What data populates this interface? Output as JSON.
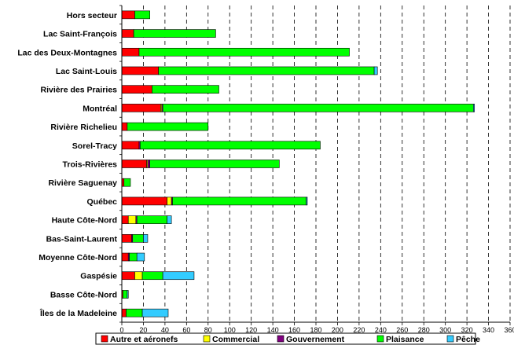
{
  "chart_data": {
    "type": "bar",
    "orientation": "horizontal",
    "stacked": true,
    "categories": [
      "Hors secteur",
      "Lac Saint-François",
      "Lac des Deux-Montagnes",
      "Lac Saint-Louis",
      "Rivière des Prairies",
      "Montréal",
      "Rivière Richelieu",
      "Sorel-Tracy",
      "Trois-Rivières",
      "Rivière Saguenay",
      "Québec",
      "Haute Côte-Nord",
      "Bas-Saint-Laurent",
      "Moyenne Côte-Nord",
      "Gaspésie",
      "Basse Côte-Nord",
      "Îles de la Madeleine"
    ],
    "series": [
      {
        "name": "Autre et aéronefs",
        "color": "#ff0000",
        "values": [
          12,
          11,
          16,
          34,
          28,
          36,
          5,
          16,
          23,
          2,
          42,
          6,
          9,
          6,
          12,
          1,
          4
        ]
      },
      {
        "name": "Commercial",
        "color": "#ffff00",
        "values": [
          0,
          0,
          0,
          0,
          0,
          1,
          0,
          0,
          1,
          0,
          4,
          7,
          0,
          0,
          7,
          0,
          0
        ]
      },
      {
        "name": "Gouvernement",
        "color": "#800080",
        "values": [
          0,
          0,
          0,
          0,
          0,
          1,
          0,
          1,
          2,
          0,
          1,
          1,
          1,
          1,
          0,
          0,
          0
        ]
      },
      {
        "name": "Plaisance",
        "color": "#00ff00",
        "values": [
          14,
          76,
          195,
          200,
          62,
          288,
          75,
          167,
          120,
          6,
          124,
          28,
          10,
          7,
          19,
          4,
          15
        ]
      },
      {
        "name": "Pêche",
        "color": "#33ccff",
        "values": [
          0,
          0,
          0,
          3,
          0,
          1,
          0,
          0,
          0,
          0,
          1,
          4,
          4,
          7,
          29,
          1,
          24
        ]
      }
    ],
    "xlim": [
      0,
      360
    ],
    "xticks": [
      "0",
      "20",
      "40",
      "60",
      "80",
      "100",
      "120",
      "140",
      "160",
      "180",
      "200",
      "220",
      "240",
      "260",
      "280",
      "300",
      "320",
      "340",
      "360"
    ],
    "grid": "vertical dashed",
    "legend": "bottom"
  }
}
